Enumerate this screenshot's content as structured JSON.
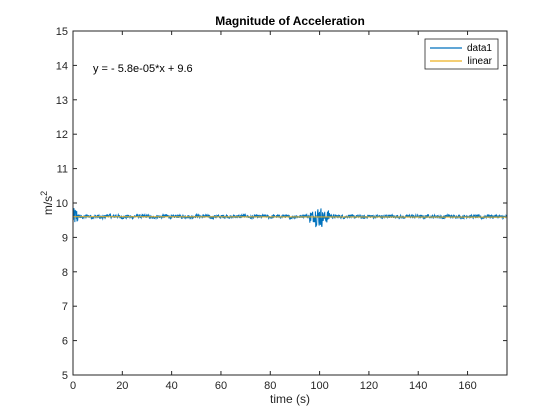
{
  "chart_data": {
    "type": "line",
    "title": "Magnitude of Acceleration",
    "xlabel": "time (s)",
    "ylabel_base": "m/s",
    "ylabel_exp": "2",
    "xlim": [
      0,
      176
    ],
    "ylim": [
      5,
      15
    ],
    "xticks": [
      0,
      20,
      40,
      60,
      80,
      100,
      120,
      140,
      160
    ],
    "yticks": [
      5,
      6,
      7,
      8,
      9,
      10,
      11,
      12,
      13,
      14,
      15
    ],
    "grid": false,
    "legend_position": "top-right",
    "annotation": "y = - 5.8e-05*x + 9.6",
    "series": [
      {
        "name": "data1",
        "color": "#0072BD",
        "description_values": {
          "x": [
            0,
            2,
            4,
            6,
            8,
            10,
            12,
            14,
            16,
            18,
            20,
            22,
            24,
            26,
            28,
            30,
            32,
            34,
            36,
            38,
            40,
            42,
            44,
            46,
            48,
            50,
            52,
            54,
            56,
            58,
            60,
            62,
            64,
            66,
            68,
            70,
            72,
            74,
            76,
            78,
            80,
            82,
            84,
            86,
            88,
            90,
            92,
            94,
            96,
            98,
            100,
            102,
            104,
            106,
            108,
            110,
            112,
            114,
            116,
            118,
            120,
            122,
            124,
            126,
            128,
            130,
            132,
            134,
            136,
            138,
            140,
            142,
            144,
            146,
            148,
            150,
            152,
            154,
            156,
            158,
            160,
            162,
            164,
            166,
            168,
            170,
            172,
            174,
            176
          ],
          "y": [
            9.6,
            9.62,
            9.58,
            9.63,
            9.59,
            9.61,
            9.57,
            9.64,
            9.6,
            9.62,
            9.58,
            9.61,
            9.59,
            9.63,
            9.6,
            9.62,
            9.57,
            9.61,
            9.6,
            9.63,
            9.58,
            9.62,
            9.6,
            9.61,
            9.59,
            9.63,
            9.6,
            9.62,
            9.58,
            9.61,
            9.6,
            9.62,
            9.59,
            9.61,
            9.6,
            9.63,
            9.58,
            9.61,
            9.6,
            9.62,
            9.59,
            9.61,
            9.6,
            9.62,
            9.58,
            9.61,
            9.6,
            9.63,
            9.59,
            9.62,
            9.6,
            9.58,
            9.62,
            9.6,
            9.61,
            9.59,
            9.62,
            9.6,
            9.61,
            9.58,
            9.62,
            9.6,
            9.61,
            9.59,
            9.62,
            9.6,
            9.61,
            9.58,
            9.62,
            9.6,
            9.61,
            9.59,
            9.62,
            9.6,
            9.61,
            9.58,
            9.62,
            9.6,
            9.61,
            9.59,
            9.62,
            9.6,
            9.61,
            9.58,
            9.62,
            9.6,
            9.61,
            9.59,
            9.6
          ]
        }
      },
      {
        "name": "linear",
        "color": "#EDB120",
        "slope": -5.8e-05,
        "intercept": 9.6
      }
    ]
  }
}
